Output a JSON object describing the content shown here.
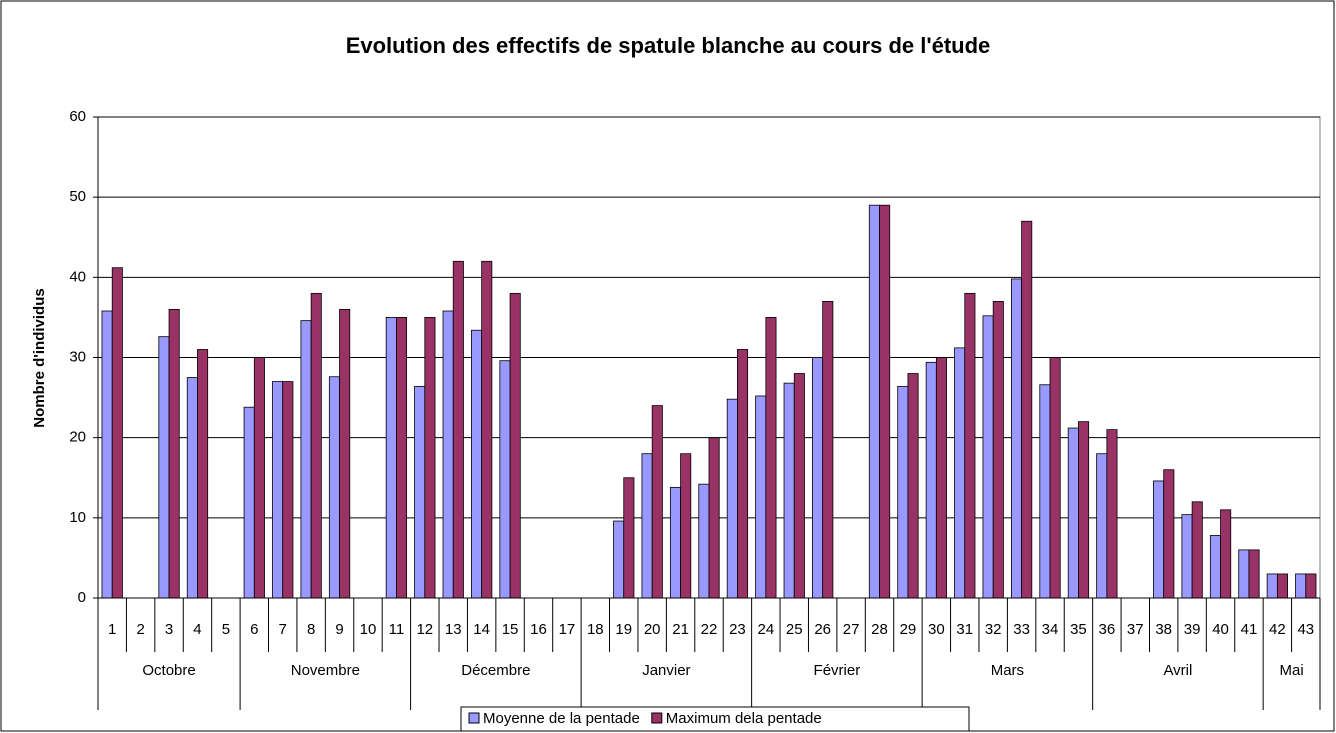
{
  "chart_data": {
    "type": "bar",
    "title": "Evolution des effectifs de spatule blanche au cours de l'étude",
    "y_label": "Nombre d'individus",
    "categories": [
      "1",
      "2",
      "3",
      "4",
      "5",
      "6",
      "7",
      "8",
      "9",
      "10",
      "11",
      "12",
      "13",
      "14",
      "15",
      "16",
      "17",
      "18",
      "19",
      "20",
      "21",
      "22",
      "23",
      "24",
      "25",
      "26",
      "27",
      "28",
      "29",
      "30",
      "31",
      "32",
      "33",
      "34",
      "35",
      "36",
      "37",
      "38",
      "39",
      "40",
      "41",
      "42",
      "43"
    ],
    "months": [
      "Octobre",
      "Octobre",
      "Octobre",
      "Octobre",
      "Octobre",
      "Novembre",
      "Novembre",
      "Novembre",
      "Novembre",
      "Novembre",
      "Novembre",
      "Décembre",
      "Décembre",
      "Décembre",
      "Décembre",
      "Décembre",
      "Décembre",
      "Janvier",
      "Janvier",
      "Janvier",
      "Janvier",
      "Janvier",
      "Janvier",
      "Février",
      "Février",
      "Février",
      "Février",
      "Février",
      "Février",
      "Mars",
      "Mars",
      "Mars",
      "Mars",
      "Mars",
      "Mars",
      "Avril",
      "Avril",
      "Avril",
      "Avril",
      "Avril",
      "Avril",
      "Mai",
      "Mai"
    ],
    "series": [
      {
        "name": "Moyenne de la pentade",
        "color": "#9999ff",
        "values": [
          35.8,
          null,
          32.6,
          27.5,
          null,
          23.8,
          27,
          34.6,
          27.6,
          null,
          35,
          26.4,
          35.8,
          33.4,
          29.6,
          null,
          null,
          null,
          9.6,
          18,
          13.8,
          14.2,
          24.8,
          25.2,
          26.8,
          30,
          null,
          49,
          26.4,
          29.4,
          31.2,
          35.2,
          39.8,
          26.6,
          21.2,
          18,
          null,
          14.6,
          10.4,
          7.8,
          6,
          3,
          3
        ]
      },
      {
        "name": "Maximum dela pentade",
        "color": "#993366",
        "values": [
          41.2,
          null,
          36,
          31,
          null,
          30,
          27,
          38,
          36,
          null,
          35,
          35,
          42,
          42,
          38,
          null,
          null,
          null,
          15,
          24,
          18,
          20,
          31,
          35,
          28,
          37,
          null,
          49,
          28,
          30,
          38,
          37,
          47,
          30,
          22,
          21,
          null,
          16,
          12,
          11,
          6,
          3,
          3
        ]
      }
    ],
    "ylim": [
      0,
      60
    ],
    "yticks": [
      0,
      10,
      20,
      30,
      40,
      50,
      60
    ],
    "grid": true,
    "legend": "bottom"
  }
}
